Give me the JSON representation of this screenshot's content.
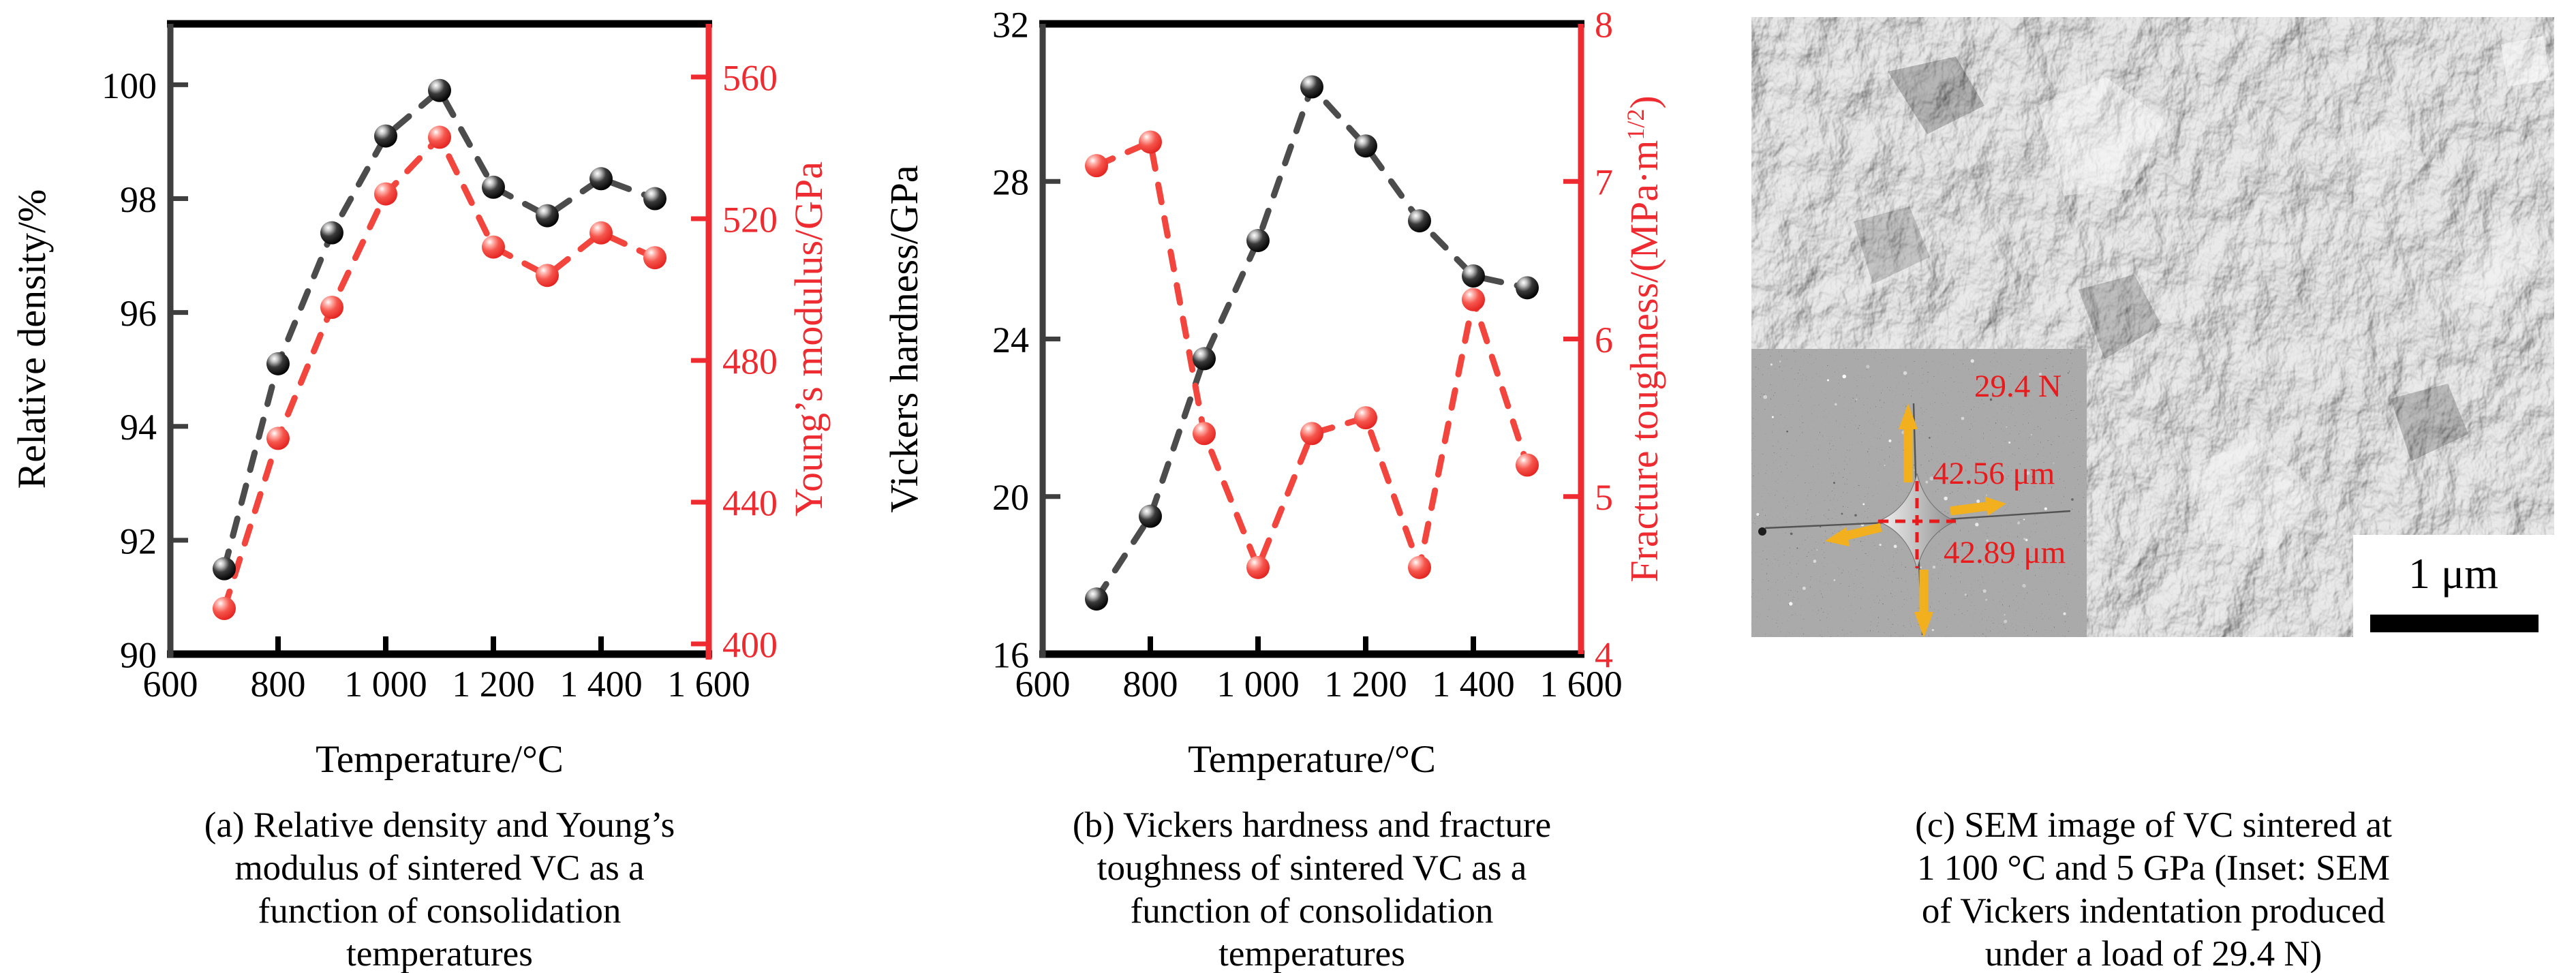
{
  "colors": {
    "axis_red": "#ee2b30",
    "series_red": "#f2453e",
    "series_black_dash": "#4c4c4c",
    "inset_red": "#e91a1c",
    "arrow_yellow": "#f2b01e",
    "frame_black": "#000000",
    "left_spine_gray": "#3f3f3f"
  },
  "chart_data": [
    {
      "id": "a",
      "type": "scatter",
      "x": [
        700,
        800,
        900,
        1000,
        1100,
        1200,
        1300,
        1400,
        1500
      ],
      "xlim": [
        600,
        1600
      ],
      "x_tick_values": [
        600,
        800,
        1000,
        1200,
        1400,
        1600
      ],
      "x_tick_labels": [
        "600",
        "800",
        "1 000",
        "1 200",
        "1 400",
        "1 600"
      ],
      "xlabel": "Temperature/°C",
      "grid": false,
      "legend": "none",
      "series": [
        {
          "name": "Relative density",
          "axis": "left",
          "marker": "black-sphere",
          "values": [
            91.5,
            95.1,
            97.4,
            99.1,
            99.9,
            98.2,
            97.7,
            98.35,
            98.0
          ]
        },
        {
          "name": "Young’s modulus",
          "axis": "right",
          "marker": "red-sphere",
          "values": [
            410,
            458,
            495,
            527,
            543,
            512,
            504,
            516,
            509
          ]
        }
      ],
      "left_axis": {
        "label": "Relative density/%",
        "ticks": [
          90,
          92,
          94,
          96,
          98,
          100
        ],
        "range": [
          90,
          101
        ]
      },
      "right_axis": {
        "label": "Young’s modulus/GPa",
        "ticks": [
          400,
          440,
          480,
          520,
          560
        ],
        "range": [
          400,
          565
        ]
      },
      "caption_lines": [
        "(a) Relative density and Young’s",
        "modulus of sintered VC as a",
        "function of consolidation",
        "temperatures"
      ]
    },
    {
      "id": "b",
      "type": "scatter",
      "x": [
        700,
        800,
        900,
        1000,
        1100,
        1200,
        1300,
        1400,
        1500
      ],
      "xlim": [
        600,
        1600
      ],
      "x_tick_values": [
        600,
        800,
        1000,
        1200,
        1400,
        1600
      ],
      "x_tick_labels": [
        "600",
        "800",
        "1 000",
        "1 200",
        "1 400",
        "1 600"
      ],
      "xlabel": "Temperature/°C",
      "grid": false,
      "legend": "none",
      "series": [
        {
          "name": "Vickers hardness",
          "axis": "left",
          "marker": "black-sphere",
          "values": [
            17.4,
            19.5,
            23.5,
            26.5,
            30.4,
            28.9,
            27.0,
            25.6,
            25.3
          ]
        },
        {
          "name": "Fracture toughness",
          "axis": "right",
          "marker": "red-sphere",
          "values": [
            7.1,
            7.25,
            5.4,
            4.55,
            5.4,
            5.5,
            4.55,
            6.25,
            5.2
          ]
        }
      ],
      "left_axis": {
        "label": "Vickers hardness/GPa",
        "ticks": [
          16,
          20,
          24,
          28,
          32
        ],
        "range": [
          16,
          32
        ]
      },
      "right_axis": {
        "label_parts": [
          "Fracture toughness/(MPa·m",
          "1/2",
          ")"
        ],
        "ticks": [
          4,
          5,
          6,
          7,
          8
        ],
        "range": [
          4,
          8
        ]
      },
      "caption_lines": [
        "(b) Vickers hardness and fracture",
        "toughness of sintered VC as a",
        "function of consolidation",
        "temperatures"
      ]
    }
  ],
  "sem_panel": {
    "scale_bar_label": "1 μm",
    "inset": {
      "load": "29.4 N",
      "vertical_diagonal": "42.56 μm",
      "horizontal_diagonal": "42.89 μm"
    },
    "caption_lines": [
      "(c) SEM image of VC sintered at",
      "1 100 °C and 5 GPa (Inset: SEM",
      "of Vickers indentation produced",
      "under a load of 29.4 N)"
    ]
  }
}
